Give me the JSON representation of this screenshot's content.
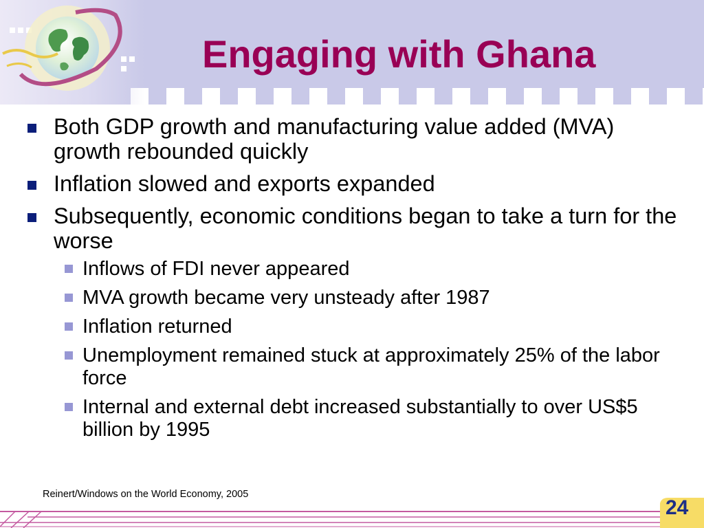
{
  "slide": {
    "title": "Engaging with Ghana",
    "bullets": [
      {
        "text": "Both GDP growth and manufacturing value added (MVA) growth rebounded quickly"
      },
      {
        "text": "Inflation slowed and exports expanded"
      },
      {
        "text": "Subsequently, economic conditions began to take a turn for the worse",
        "sub_bullets": [
          "Inflows of FDI never appeared",
          "MVA growth became very unsteady after 1987",
          "Inflation returned",
          "Unemployment remained stuck at approximately 25% of the labor force",
          "Internal and external debt increased substantially to over US$5 billion by 1995"
        ]
      }
    ],
    "citation": "Reinert/Windows on the World Economy, 2005",
    "page_number": "24"
  },
  "colors": {
    "title": "#990055",
    "header_band": "#c9c9e8",
    "bullet_marker": "#0b1e7a",
    "sub_bullet_marker": "#9797d4",
    "footer_line": "#c45aa0",
    "page_badge": "#f7dc66",
    "page_number": "#1d2f86"
  },
  "icons": {
    "header_logo": "globe-icon",
    "bullet": "square-bullet-icon",
    "sub_bullet": "small-square-bullet-icon"
  }
}
